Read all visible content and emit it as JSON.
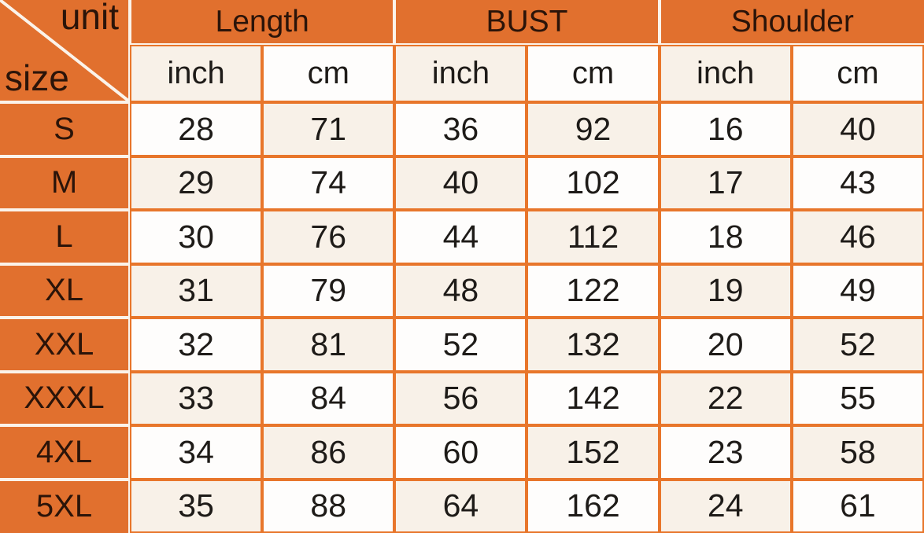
{
  "table": {
    "corner": {
      "top_label": "unit",
      "bottom_label": "size"
    },
    "column_groups": [
      {
        "label": "Length"
      },
      {
        "label": "BUST"
      },
      {
        "label": "Shoulder"
      }
    ],
    "unit_headers": [
      "inch",
      "cm",
      "inch",
      "cm",
      "inch",
      "cm"
    ],
    "rows": [
      {
        "size": "S",
        "values": [
          28,
          71,
          36,
          92,
          16,
          40
        ]
      },
      {
        "size": "M",
        "values": [
          29,
          74,
          40,
          102,
          17,
          43
        ]
      },
      {
        "size": "L",
        "values": [
          30,
          76,
          44,
          112,
          18,
          46
        ]
      },
      {
        "size": "XL",
        "values": [
          31,
          79,
          48,
          122,
          19,
          49
        ]
      },
      {
        "size": "XXL",
        "values": [
          32,
          81,
          52,
          132,
          20,
          52
        ]
      },
      {
        "size": "XXXL",
        "values": [
          33,
          84,
          56,
          142,
          22,
          55
        ]
      },
      {
        "size": "4XL",
        "values": [
          34,
          86,
          60,
          152,
          23,
          58
        ]
      },
      {
        "size": "5XL",
        "values": [
          35,
          88,
          64,
          162,
          24,
          61
        ]
      }
    ]
  },
  "colors": {
    "orange": "#e1702e",
    "grid_orange": "#e8762b",
    "grid_white": "#fbf3ea",
    "cell_cream": "#f8f1e8",
    "cell_white": "#fefdfc",
    "number_text": "#1e1b18",
    "header_text": "#2b1409"
  }
}
